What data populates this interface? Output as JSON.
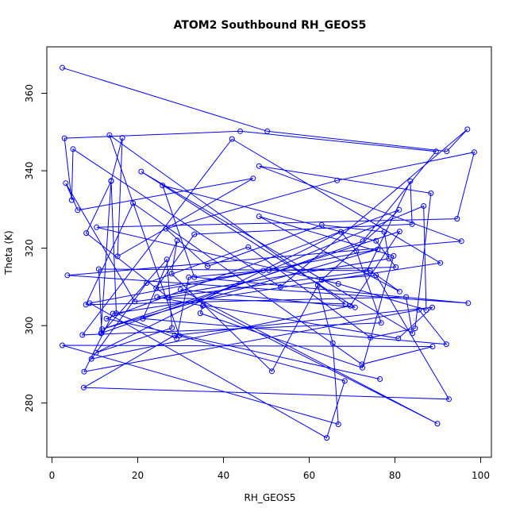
{
  "chart_data": {
    "type": "line",
    "title": "ATOM2 Southbound RH_GEOS5",
    "xlabel": "RH_GEOS5",
    "ylabel": "Theta (K)",
    "xlim": [
      0,
      100
    ],
    "ylim": [
      266,
      372
    ],
    "xticks": [
      0,
      20,
      40,
      60,
      80,
      100
    ],
    "yticks": [
      280,
      300,
      320,
      340,
      360
    ],
    "xtick_labels": [
      "0",
      "20",
      "40",
      "60",
      "80",
      "100"
    ],
    "ytick_labels": [
      "280",
      "300",
      "320",
      "340",
      "360"
    ],
    "grid": false,
    "series": [
      {
        "color": "#0000ff",
        "x": [
          2.4,
          50.2,
          92.1,
          96.9,
          53.3,
          4.9,
          4.6,
          2.9,
          43.9,
          89.6,
          72.5,
          11.4,
          13.8,
          16.4,
          15.3,
          46.9,
          6.0,
          3.2,
          19.3,
          73.4,
          83.6,
          84.0,
          33.2,
          24.3,
          49.3,
          80.2,
          75.6,
          25.8,
          33.2,
          97.1,
          3.6,
          95.5,
          48.3,
          88.4,
          84.7,
          74.3,
          45.8,
          22.1,
          9.2,
          69.6,
          81.1,
          11.7,
          76.0,
          8.8,
          64.1,
          68.3,
          29.7,
          13.4,
          68.4,
          27.2,
          8.0,
          13.8,
          15.0,
          29.1,
          31.9,
          50.6,
          86.7,
          87.3,
          66.8,
          10.4,
          94.5,
          98.5,
          66.5,
          26.6,
          36.3,
          62.9,
          77.5,
          78.6,
          24.5,
          35.2,
          34.6,
          72.4,
          79.7,
          48.3,
          81.1,
          74.2,
          10.9,
          11.6,
          26.8,
          28.0,
          10.3,
          67.4,
          71.0,
          76.8,
          7.1,
          42.0,
          90.6,
          14.2,
          7.5,
          85.6,
          92.0,
          21.2,
          29.2,
          27.9,
          51.3,
          62.0,
          65.5,
          66.8,
          2.4,
          88.8,
          72.3,
          18.9,
          7.9,
          82.6,
          84.1,
          20.8,
          70.7,
          30.0,
          89.9,
          35.3,
          80.8,
          88.7,
          28.6,
          7.4,
          92.6,
          75.6,
          62.9,
          81.0,
          12.7,
          76.5
        ],
        "y": [
          366.6,
          350.2,
          345.0,
          350.7,
          310.0,
          345.6,
          332.4,
          348.4,
          350.2,
          345.0,
          321.8,
          298.0,
          337.4,
          348.5,
          317.9,
          338.0,
          329.8,
          336.8,
          306.2,
          314.0,
          337.3,
          326.2,
          323.6,
          309.7,
          314.2,
          315.1,
          321.9,
          336.2,
          312.5,
          305.8,
          313.0,
          321.8,
          341.2,
          334.2,
          299.3,
          296.9,
          320.3,
          311.0,
          291.4,
          305.1,
          324.3,
          299.1,
          319.7,
          305.8,
          271.0,
          285.7,
          297.4,
          349.2,
          305.6,
          307.2,
          323.9,
          337.3,
          303.2,
          296.7,
          312.5,
          314.3,
          330.9,
          304.0,
          310.8,
          325.4,
          327.6,
          344.8,
          337.5,
          325.0,
          315.3,
          326.0,
          324.2,
          317.3,
          307.4,
          305.1,
          303.2,
          289.1,
          318.0,
          328.2,
          308.8,
          314.2,
          314.6,
          298.1,
          317.1,
          299.4,
          293.0,
          324.2,
          319.3,
          300.7,
          297.6,
          348.2,
          316.2,
          303.1,
          288.1,
          304.1,
          295.2,
          301.8,
          322.0,
          313.4,
          288.2,
          310.4,
          295.5,
          274.5,
          294.9,
          294.6,
          290.0,
          331.6,
          305.4,
          307.4,
          298.0,
          339.8,
          304.7,
          309.3,
          274.7,
          305.3,
          296.7,
          304.7,
          297.5,
          284.0,
          281.0,
          313.0,
          311.8,
          329.9,
          301.8,
          286.2
        ]
      }
    ]
  }
}
